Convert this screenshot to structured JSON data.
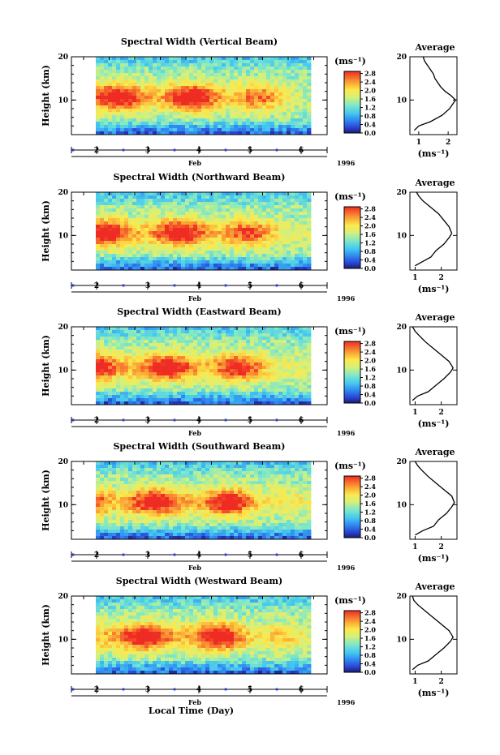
{
  "chart_data": [
    {
      "type": "heatmap",
      "title": "Spectral Width (Vertical Beam)",
      "ylabel": "Height (km)",
      "xlabel": "",
      "x_ticks": [
        "2",
        "3",
        "4",
        "5",
        "6"
      ],
      "y_ticks": [
        "20",
        "10"
      ],
      "x_unit": "Feb",
      "year": "1996",
      "ylim": [
        2,
        20
      ],
      "colorbar": {
        "label": "(ms⁻¹)",
        "ticks": [
          "2.8",
          "2.4",
          "2.0",
          "1.6",
          "1.2",
          "0.8",
          "0.4",
          "0.0"
        ],
        "range": [
          0,
          2.9
        ]
      },
      "average": {
        "title": "Average",
        "xlabel": "(ms⁻¹)",
        "x_ticks": [
          "1",
          "2"
        ],
        "xlim": [
          0.7,
          2.3
        ],
        "y_ticks": [
          "20",
          "10"
        ],
        "profile": [
          [
            0.85,
            3
          ],
          [
            1.0,
            4
          ],
          [
            1.4,
            5
          ],
          [
            1.8,
            6.5
          ],
          [
            2.05,
            8
          ],
          [
            2.2,
            9.5
          ],
          [
            2.25,
            10
          ],
          [
            2.1,
            11
          ],
          [
            1.9,
            12
          ],
          [
            1.75,
            13
          ],
          [
            1.65,
            14
          ],
          [
            1.55,
            15
          ],
          [
            1.5,
            16
          ],
          [
            1.4,
            17
          ],
          [
            1.3,
            18
          ],
          [
            1.2,
            19
          ],
          [
            1.15,
            20
          ]
        ]
      }
    },
    {
      "type": "heatmap",
      "title": "Spectral Width (Northward Beam)",
      "ylabel": "Height (km)",
      "xlabel": "",
      "x_ticks": [
        "2",
        "3",
        "4",
        "5",
        "6"
      ],
      "y_ticks": [
        "20",
        "10"
      ],
      "x_unit": "Feb",
      "year": "1996",
      "ylim": [
        2,
        20
      ],
      "colorbar": {
        "label": "(ms⁻¹)",
        "ticks": [
          "2.8",
          "2.4",
          "2.0",
          "1.6",
          "1.2",
          "0.8",
          "0.4",
          "0.0"
        ],
        "range": [
          0,
          2.9
        ]
      },
      "average": {
        "title": "Average",
        "xlabel": "(ms⁻¹)",
        "x_ticks": [
          "1",
          "2"
        ],
        "xlim": [
          0.8,
          2.6
        ],
        "y_ticks": [
          "20",
          "10"
        ],
        "profile": [
          [
            1.0,
            3
          ],
          [
            1.3,
            4
          ],
          [
            1.6,
            5
          ],
          [
            1.8,
            6.5
          ],
          [
            2.1,
            8
          ],
          [
            2.3,
            9.5
          ],
          [
            2.4,
            10.5
          ],
          [
            2.3,
            12
          ],
          [
            2.1,
            13.5
          ],
          [
            1.9,
            15
          ],
          [
            1.6,
            16.5
          ],
          [
            1.3,
            18
          ],
          [
            1.15,
            19
          ],
          [
            1.05,
            20
          ]
        ]
      }
    },
    {
      "type": "heatmap",
      "title": "Spectral Width (Eastward Beam)",
      "ylabel": "Height (km)",
      "xlabel": "",
      "x_ticks": [
        "2",
        "3",
        "4",
        "5",
        "6"
      ],
      "y_ticks": [
        "20",
        "10"
      ],
      "x_unit": "Feb",
      "year": "1996",
      "ylim": [
        2,
        20
      ],
      "colorbar": {
        "label": "(ms⁻¹)",
        "ticks": [
          "2.8",
          "2.4",
          "2.0",
          "1.6",
          "1.2",
          "0.8",
          "0.4",
          "0.0"
        ],
        "range": [
          0,
          2.9
        ]
      },
      "average": {
        "title": "Average",
        "xlabel": "(ms⁻¹)",
        "x_ticks": [
          "1",
          "2"
        ],
        "xlim": [
          0.8,
          2.6
        ],
        "y_ticks": [
          "20",
          "10"
        ],
        "profile": [
          [
            0.9,
            3
          ],
          [
            1.1,
            4
          ],
          [
            1.5,
            5
          ],
          [
            1.8,
            6.5
          ],
          [
            2.1,
            8
          ],
          [
            2.35,
            9.5
          ],
          [
            2.45,
            10.5
          ],
          [
            2.3,
            12
          ],
          [
            2.0,
            13.5
          ],
          [
            1.7,
            15
          ],
          [
            1.4,
            16.5
          ],
          [
            1.15,
            18
          ],
          [
            1.0,
            19
          ],
          [
            0.9,
            20
          ]
        ]
      }
    },
    {
      "type": "heatmap",
      "title": "Spectral Width (Southward Beam)",
      "ylabel": "Height (km)",
      "xlabel": "",
      "x_ticks": [
        "2",
        "3",
        "4",
        "5",
        "6"
      ],
      "y_ticks": [
        "20",
        "10"
      ],
      "x_unit": "Feb",
      "year": "1996",
      "ylim": [
        2,
        20
      ],
      "colorbar": {
        "label": "(ms⁻¹)",
        "ticks": [
          "2.8",
          "2.4",
          "2.0",
          "1.6",
          "1.2",
          "0.8",
          "0.4",
          "0.0"
        ],
        "range": [
          0,
          2.9
        ]
      },
      "average": {
        "title": "Average",
        "xlabel": "(ms⁻¹)",
        "x_ticks": [
          "1",
          "2"
        ],
        "xlim": [
          0.8,
          2.6
        ],
        "y_ticks": [
          "20",
          "10"
        ],
        "profile": [
          [
            1.0,
            3
          ],
          [
            1.3,
            4
          ],
          [
            1.7,
            5
          ],
          [
            1.9,
            6.5
          ],
          [
            2.2,
            8
          ],
          [
            2.4,
            9.5
          ],
          [
            2.5,
            10.5
          ],
          [
            2.4,
            12
          ],
          [
            2.1,
            13.5
          ],
          [
            1.8,
            15
          ],
          [
            1.5,
            16.5
          ],
          [
            1.25,
            18
          ],
          [
            1.1,
            19
          ],
          [
            1.0,
            20
          ]
        ]
      }
    },
    {
      "type": "heatmap",
      "title": "Spectral Width (Westward Beam)",
      "ylabel": "Height (km)",
      "xlabel": "Local Time (Day)",
      "x_ticks": [
        "2",
        "3",
        "4",
        "5",
        "6"
      ],
      "y_ticks": [
        "20",
        "10"
      ],
      "x_unit": "Feb",
      "year": "1996",
      "ylim": [
        2,
        20
      ],
      "colorbar": {
        "label": "(ms⁻¹)",
        "ticks": [
          "2.8",
          "2.4",
          "2.0",
          "1.6",
          "1.2",
          "0.8",
          "0.4",
          "0.0"
        ],
        "range": [
          0,
          2.9
        ]
      },
      "average": {
        "title": "Average",
        "xlabel": "(ms⁻¹)",
        "x_ticks": [
          "1",
          "2"
        ],
        "xlim": [
          0.8,
          2.6
        ],
        "y_ticks": [
          "20",
          "10"
        ],
        "profile": [
          [
            0.9,
            3
          ],
          [
            1.1,
            4
          ],
          [
            1.5,
            5
          ],
          [
            1.8,
            6.5
          ],
          [
            2.1,
            8
          ],
          [
            2.35,
            9.5
          ],
          [
            2.45,
            10.5
          ],
          [
            2.3,
            12
          ],
          [
            2.0,
            13.5
          ],
          [
            1.7,
            15
          ],
          [
            1.4,
            16.5
          ],
          [
            1.1,
            18
          ],
          [
            0.95,
            19
          ],
          [
            0.9,
            20
          ]
        ]
      }
    }
  ]
}
